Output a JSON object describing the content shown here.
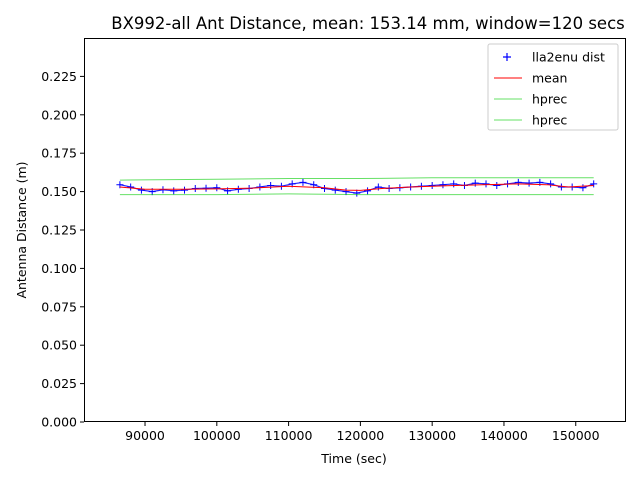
{
  "chart_data": {
    "type": "line",
    "title": "BX992-all Ant Distance, mean: 153.14 mm, window=120 secs",
    "xlabel": "Time (sec)",
    "ylabel": "Antenna Distance (m)",
    "xlim": [
      81500,
      157000
    ],
    "ylim": [
      0.0,
      0.25
    ],
    "x_ticks": [
      90000,
      100000,
      110000,
      120000,
      130000,
      140000,
      150000
    ],
    "x_tick_labels": [
      "90000",
      "100000",
      "110000",
      "120000",
      "130000",
      "140000",
      "150000"
    ],
    "y_ticks": [
      0.0,
      0.025,
      0.05,
      0.075,
      0.1,
      0.125,
      0.15,
      0.175,
      0.2,
      0.225
    ],
    "y_tick_labels": [
      "0.000",
      "0.025",
      "0.050",
      "0.075",
      "0.100",
      "0.125",
      "0.150",
      "0.175",
      "0.200",
      "0.225"
    ],
    "grid": false,
    "legend_position": "top-right",
    "series": [
      {
        "name": "lla2enu dist",
        "style": "markers-plus",
        "color": "#0000ff",
        "x": [
          86500,
          88000,
          89500,
          91000,
          92500,
          94000,
          95500,
          97000,
          98500,
          100000,
          101500,
          103000,
          104500,
          106000,
          107500,
          109000,
          110500,
          112000,
          113500,
          115000,
          116500,
          118000,
          119500,
          121000,
          122500,
          124000,
          125500,
          127000,
          128500,
          130000,
          131500,
          133000,
          134500,
          136000,
          137500,
          139000,
          140500,
          142000,
          143500,
          145000,
          146500,
          148000,
          149500,
          151000,
          152500
        ],
        "y": [
          0.1545,
          0.153,
          0.151,
          0.15,
          0.1512,
          0.1505,
          0.151,
          0.152,
          0.1522,
          0.1525,
          0.1505,
          0.1515,
          0.152,
          0.153,
          0.154,
          0.1535,
          0.155,
          0.156,
          0.1545,
          0.152,
          0.151,
          0.15,
          0.149,
          0.1505,
          0.153,
          0.152,
          0.1525,
          0.153,
          0.1535,
          0.154,
          0.1545,
          0.155,
          0.154,
          0.1555,
          0.155,
          0.154,
          0.155,
          0.156,
          0.1555,
          0.156,
          0.155,
          0.153,
          0.153,
          0.1525,
          0.155
        ]
      },
      {
        "name": "mean",
        "style": "line",
        "color": "#ff0000",
        "x": [
          86500,
          90000,
          95000,
          100000,
          105000,
          110000,
          115000,
          118000,
          120000,
          123000,
          127000,
          132000,
          137000,
          142000,
          146000,
          149000,
          152500
        ],
        "y": [
          0.153,
          0.1515,
          0.1515,
          0.1518,
          0.1523,
          0.1535,
          0.1525,
          0.151,
          0.1508,
          0.152,
          0.153,
          0.1538,
          0.1545,
          0.155,
          0.1545,
          0.153,
          0.154
        ]
      },
      {
        "name": "hprec",
        "style": "line",
        "color": "#00cc00",
        "x": [
          86500,
          100000,
          110000,
          120000,
          130000,
          140000,
          152500
        ],
        "y": [
          0.1575,
          0.158,
          0.1585,
          0.1585,
          0.159,
          0.159,
          0.159
        ]
      },
      {
        "name": "hprec",
        "style": "line",
        "color": "#00cc00",
        "x": [
          86500,
          100000,
          110000,
          120000,
          130000,
          140000,
          152500
        ],
        "y": [
          0.148,
          0.148,
          0.1485,
          0.148,
          0.148,
          0.148,
          0.148
        ]
      }
    ]
  }
}
